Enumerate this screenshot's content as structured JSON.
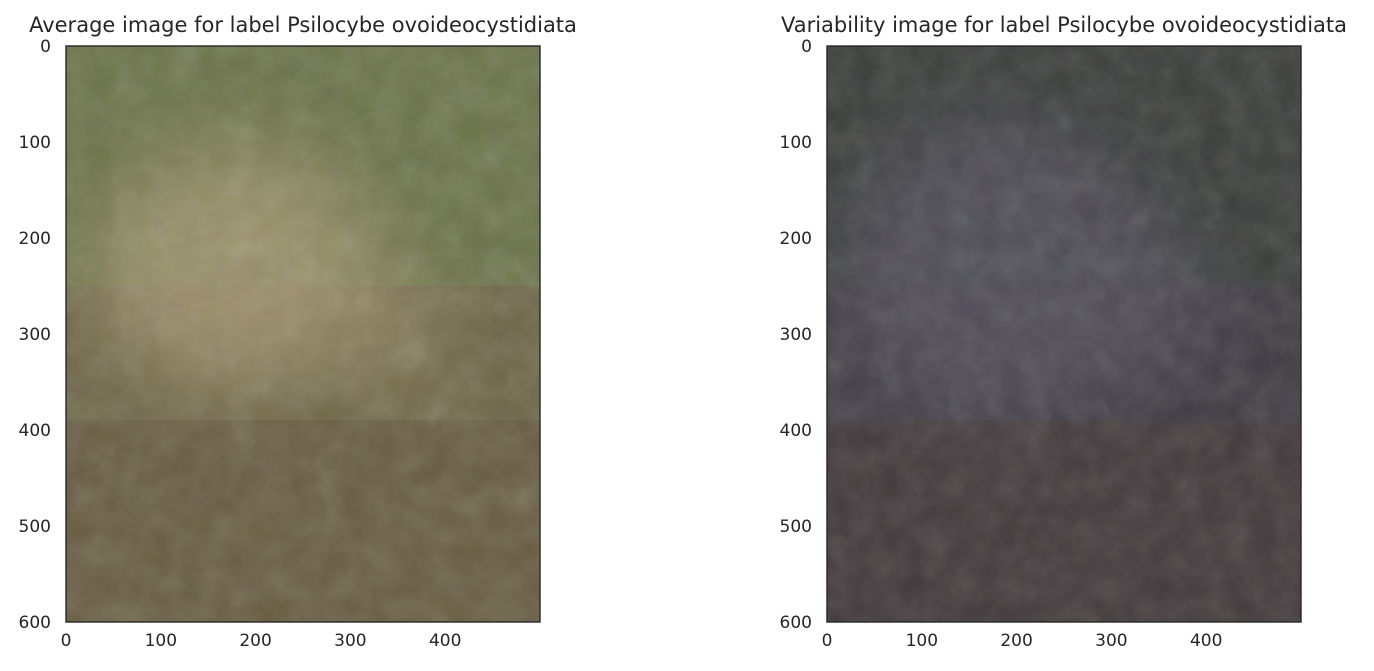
{
  "chart_data": [
    {
      "type": "heatmap",
      "title": "Average image for label Psilocybe ovoideocystidiata",
      "xlabel": "",
      "ylabel": "",
      "xlim": [
        0,
        500
      ],
      "ylim": [
        600,
        0
      ],
      "x_ticks": [
        0,
        100,
        200,
        300,
        400
      ],
      "y_ticks": [
        0,
        100,
        200,
        300,
        400,
        500,
        600
      ],
      "grid": false,
      "colors": {
        "base": "#6e6648",
        "top_tint": "#6b7f4c",
        "center_tint": "#a79a74",
        "lower_tint": "#5e4e3a"
      }
    },
    {
      "type": "heatmap",
      "title": "Variability image for label Psilocybe ovoideocystidiata",
      "xlabel": "",
      "ylabel": "",
      "xlim": [
        0,
        500
      ],
      "ylim": [
        600,
        0
      ],
      "x_ticks": [
        0,
        100,
        200,
        300,
        400
      ],
      "y_ticks": [
        0,
        100,
        200,
        300,
        400,
        500,
        600
      ],
      "grid": false,
      "colors": {
        "base": "#403d43",
        "top_tint": "#3b4239",
        "center_tint": "#57525f",
        "lower_tint": "#4a3a34"
      }
    }
  ]
}
